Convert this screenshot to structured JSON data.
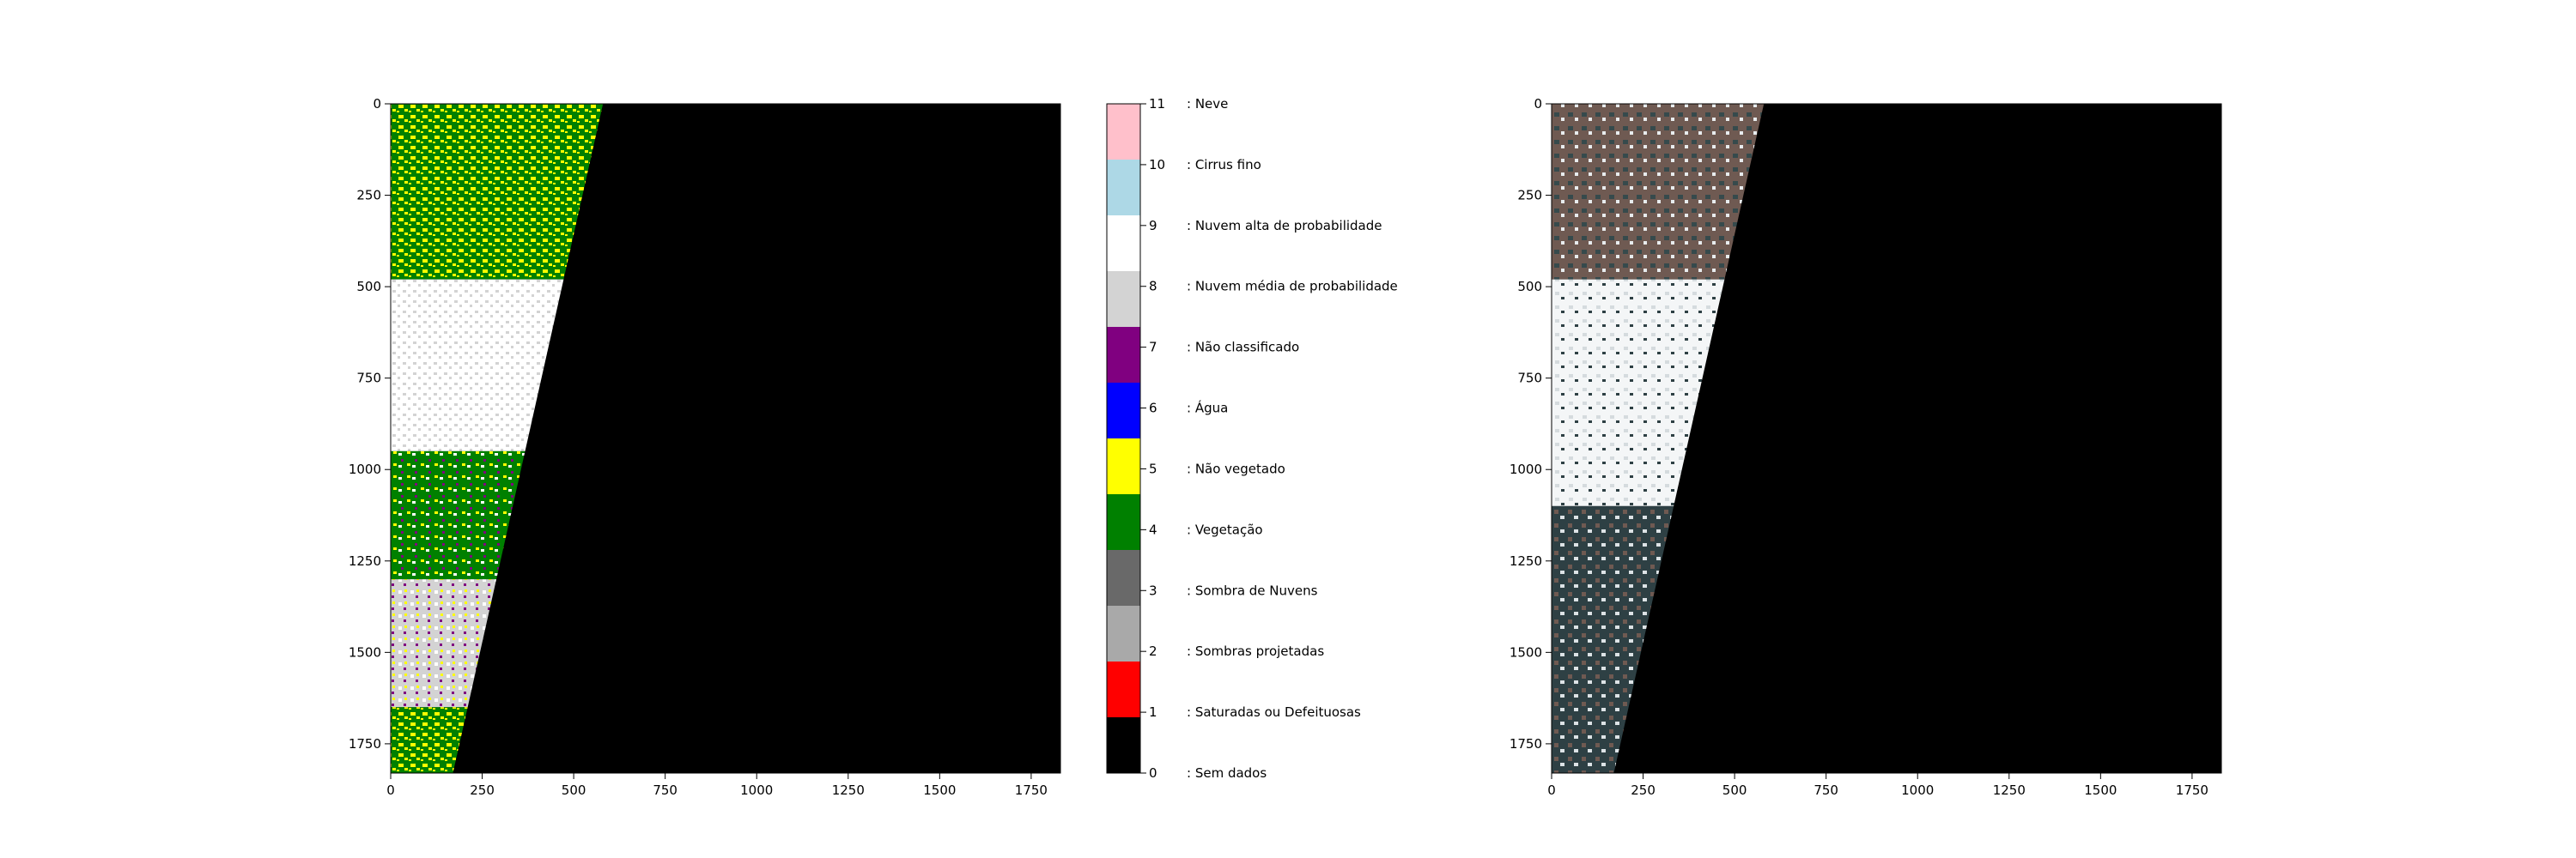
{
  "colors": {
    "axis": "#000000",
    "nodata": "#000000",
    "rgb_veg": "#6f5a52",
    "rgb_green": "#364a4c",
    "rgb_water": "#2e4044",
    "rgb_cloud": "#ffffff"
  },
  "chart_data": [
    {
      "type": "heatmap",
      "panel": "scl",
      "title": "",
      "xlabel": "",
      "ylabel": "",
      "xlim": [
        0,
        1830
      ],
      "ylim": [
        1830,
        0
      ],
      "xticks": [
        0,
        250,
        500,
        750,
        1000,
        1250,
        1500,
        1750
      ],
      "yticks": [
        0,
        250,
        500,
        750,
        1000,
        1250,
        1500,
        1750
      ],
      "swath_edge": [
        [
          580,
          0
        ],
        [
          170,
          1830
        ]
      ],
      "regions": [
        {
          "class": 4,
          "y": [
            0,
            480
          ]
        },
        {
          "class": 5,
          "y": [
            0,
            480
          ]
        },
        {
          "class": 9,
          "y": [
            480,
            950
          ]
        },
        {
          "class": 4,
          "y": [
            950,
            1300
          ]
        },
        {
          "class": 8,
          "y": [
            1300,
            1650
          ]
        },
        {
          "class": 4,
          "y": [
            1650,
            1830
          ]
        }
      ]
    },
    {
      "type": "table",
      "panel": "colorbar",
      "title": "",
      "classes": [
        {
          "value": 0,
          "label": ": Sem dados",
          "color": "#000000"
        },
        {
          "value": 1,
          "label": ": Saturadas ou Defeituosas",
          "color": "#ff0000"
        },
        {
          "value": 2,
          "label": ": Sombras projetadas",
          "color": "#a9a9a9"
        },
        {
          "value": 3,
          "label": ": Sombra de Nuvens",
          "color": "#696969"
        },
        {
          "value": 4,
          "label": ": Vegetação",
          "color": "#008000"
        },
        {
          "value": 5,
          "label": ": Não vegetado",
          "color": "#ffff00"
        },
        {
          "value": 6,
          "label": ": Água",
          "color": "#0000ff"
        },
        {
          "value": 7,
          "label": ": Não classificado",
          "color": "#800080"
        },
        {
          "value": 8,
          "label": ": Nuvem média de probabilidade",
          "color": "#d3d3d3"
        },
        {
          "value": 9,
          "label": ": Nuvem alta de probabilidade",
          "color": "#ffffff"
        },
        {
          "value": 10,
          "label": ": Cirrus fino",
          "color": "#add8e6"
        },
        {
          "value": 11,
          "label": ": Neve",
          "color": "#ffc0cb"
        }
      ]
    },
    {
      "type": "heatmap",
      "panel": "rgb",
      "title": "",
      "xlabel": "",
      "ylabel": "",
      "xlim": [
        0,
        1830
      ],
      "ylim": [
        1830,
        0
      ],
      "xticks": [
        0,
        250,
        500,
        750,
        1000,
        1250,
        1500,
        1750
      ],
      "yticks": [
        0,
        250,
        500,
        750,
        1000,
        1250,
        1500,
        1750
      ],
      "swath_edge": [
        [
          580,
          0
        ],
        [
          170,
          1830
        ]
      ]
    }
  ]
}
